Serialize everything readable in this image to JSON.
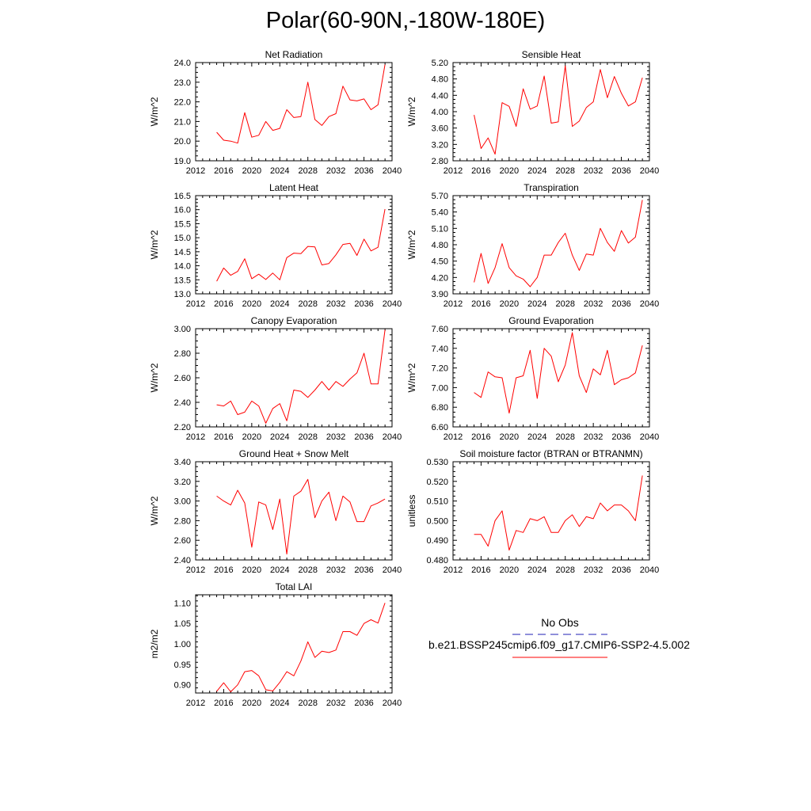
{
  "title": "Polar(60-90N,-180W-180E)",
  "colors": {
    "model_line": "#ff0000",
    "obs_line": "#1f1fb4",
    "frame": "#000000"
  },
  "legend": {
    "obs_label": "No Obs",
    "obs_style": "dashed",
    "case_label": "b.e21.BSSP245cmip6.f09_g17.CMIP6-SSP2-4.5.002",
    "case_style": "solid"
  },
  "chart_data": [
    {
      "type": "line",
      "title": "Net Radiation",
      "ylabel": "W/m^2",
      "xlim": [
        2012,
        2040
      ],
      "ylim": [
        19.0,
        24.0
      ],
      "xticks": [
        "2012",
        "2016",
        "2020",
        "2024",
        "2028",
        "2032",
        "2036",
        "2040"
      ],
      "yticks": [
        "19.0",
        "20.0",
        "21.0",
        "22.0",
        "23.0",
        "24.0"
      ],
      "x": [
        2015,
        2016,
        2017,
        2018,
        2019,
        2020,
        2021,
        2022,
        2023,
        2024,
        2025,
        2026,
        2027,
        2028,
        2029,
        2030,
        2031,
        2032,
        2033,
        2034,
        2035,
        2036,
        2037,
        2038,
        2039
      ],
      "series": [
        {
          "values": [
            20.45,
            20.05,
            20.0,
            19.9,
            21.45,
            20.2,
            20.3,
            21.0,
            20.55,
            20.65,
            21.6,
            21.2,
            21.25,
            23.0,
            21.1,
            20.8,
            21.25,
            21.4,
            22.8,
            22.1,
            22.05,
            22.15,
            21.6,
            21.85,
            23.9
          ]
        }
      ]
    },
    {
      "type": "line",
      "title": "Sensible Heat",
      "ylabel": "W/m^2",
      "xlim": [
        2012,
        2040
      ],
      "ylim": [
        2.8,
        5.2
      ],
      "xticks": [
        "2012",
        "2016",
        "2020",
        "2024",
        "2028",
        "2032",
        "2036",
        "2040"
      ],
      "yticks": [
        "2.80",
        "3.20",
        "3.60",
        "4.00",
        "4.40",
        "4.80",
        "5.20"
      ],
      "x": [
        2015,
        2016,
        2017,
        2018,
        2019,
        2020,
        2021,
        2022,
        2023,
        2024,
        2025,
        2026,
        2027,
        2028,
        2029,
        2030,
        2031,
        2032,
        2033,
        2034,
        2035,
        2036,
        2037,
        2038,
        2039
      ],
      "series": [
        {
          "values": [
            3.92,
            3.1,
            3.36,
            2.96,
            4.22,
            4.13,
            3.64,
            4.56,
            4.06,
            4.14,
            4.87,
            3.72,
            3.75,
            5.12,
            3.64,
            3.77,
            4.1,
            4.24,
            5.03,
            4.34,
            4.86,
            4.45,
            4.14,
            4.24,
            4.83
          ]
        }
      ]
    },
    {
      "type": "line",
      "title": "Latent Heat",
      "ylabel": "W/m^2",
      "xlim": [
        2012,
        2040
      ],
      "ylim": [
        13.0,
        16.5
      ],
      "xticks": [
        "2012",
        "2016",
        "2020",
        "2024",
        "2028",
        "2032",
        "2036",
        "2040"
      ],
      "yticks": [
        "13.0",
        "13.5",
        "14.0",
        "14.5",
        "15.0",
        "15.5",
        "16.0",
        "16.5"
      ],
      "x": [
        2015,
        2016,
        2017,
        2018,
        2019,
        2020,
        2021,
        2022,
        2023,
        2024,
        2025,
        2026,
        2027,
        2028,
        2029,
        2030,
        2031,
        2032,
        2033,
        2034,
        2035,
        2036,
        2037,
        2038,
        2039
      ],
      "series": [
        {
          "values": [
            13.45,
            13.92,
            13.66,
            13.8,
            14.25,
            13.54,
            13.7,
            13.51,
            13.74,
            13.5,
            14.29,
            14.45,
            14.43,
            14.69,
            14.67,
            14.03,
            14.08,
            14.39,
            14.76,
            14.8,
            14.37,
            14.95,
            14.53,
            14.66,
            16.02
          ]
        }
      ]
    },
    {
      "type": "line",
      "title": "Transpiration",
      "ylabel": "W/m^2",
      "xlim": [
        2012,
        2040
      ],
      "ylim": [
        3.9,
        5.7
      ],
      "xticks": [
        "2012",
        "2016",
        "2020",
        "2024",
        "2028",
        "2032",
        "2036",
        "2040"
      ],
      "yticks": [
        "3.90",
        "4.20",
        "4.50",
        "4.80",
        "5.10",
        "5.40",
        "5.70"
      ],
      "x": [
        2015,
        2016,
        2017,
        2018,
        2019,
        2020,
        2021,
        2022,
        2023,
        2024,
        2025,
        2026,
        2027,
        2028,
        2029,
        2030,
        2031,
        2032,
        2033,
        2034,
        2035,
        2036,
        2037,
        2038,
        2039
      ],
      "series": [
        {
          "values": [
            4.11,
            4.64,
            4.09,
            4.38,
            4.82,
            4.38,
            4.23,
            4.17,
            4.03,
            4.2,
            4.61,
            4.61,
            4.84,
            5.01,
            4.61,
            4.33,
            4.63,
            4.61,
            5.1,
            4.84,
            4.68,
            5.06,
            4.83,
            4.94,
            5.62
          ]
        }
      ]
    },
    {
      "type": "line",
      "title": "Canopy Evaporation",
      "ylabel": "W/m^2",
      "xlim": [
        2012,
        2040
      ],
      "ylim": [
        2.2,
        3.0
      ],
      "xticks": [
        "2012",
        "2016",
        "2020",
        "2024",
        "2028",
        "2032",
        "2036",
        "2040"
      ],
      "yticks": [
        "2.20",
        "2.40",
        "2.60",
        "2.80",
        "3.00"
      ],
      "x": [
        2015,
        2016,
        2017,
        2018,
        2019,
        2020,
        2021,
        2022,
        2023,
        2024,
        2025,
        2026,
        2027,
        2028,
        2029,
        2030,
        2031,
        2032,
        2033,
        2034,
        2035,
        2036,
        2037,
        2038,
        2039
      ],
      "series": [
        {
          "values": [
            2.38,
            2.37,
            2.41,
            2.3,
            2.32,
            2.41,
            2.37,
            2.23,
            2.35,
            2.39,
            2.25,
            2.5,
            2.49,
            2.44,
            2.5,
            2.57,
            2.5,
            2.57,
            2.53,
            2.59,
            2.64,
            2.8,
            2.55,
            2.55,
            2.99
          ]
        }
      ]
    },
    {
      "type": "line",
      "title": "Ground Evaporation",
      "ylabel": "W/m^2",
      "xlim": [
        2012,
        2040
      ],
      "ylim": [
        6.6,
        7.6
      ],
      "xticks": [
        "2012",
        "2016",
        "2020",
        "2024",
        "2028",
        "2032",
        "2036",
        "2040"
      ],
      "yticks": [
        "6.60",
        "6.80",
        "7.00",
        "7.20",
        "7.40",
        "7.60"
      ],
      "x": [
        2015,
        2016,
        2017,
        2018,
        2019,
        2020,
        2021,
        2022,
        2023,
        2024,
        2025,
        2026,
        2027,
        2028,
        2029,
        2030,
        2031,
        2032,
        2033,
        2034,
        2035,
        2036,
        2037,
        2038,
        2039
      ],
      "series": [
        {
          "values": [
            6.95,
            6.9,
            7.16,
            7.11,
            7.1,
            6.74,
            7.1,
            7.12,
            7.38,
            6.89,
            7.4,
            7.32,
            7.06,
            7.23,
            7.56,
            7.12,
            6.95,
            7.19,
            7.13,
            7.38,
            7.03,
            7.08,
            7.1,
            7.15,
            7.43
          ]
        }
      ]
    },
    {
      "type": "line",
      "title": "Ground Heat + Snow Melt",
      "ylabel": "W/m^2",
      "xlim": [
        2012,
        2040
      ],
      "ylim": [
        2.4,
        3.4
      ],
      "xticks": [
        "2012",
        "2016",
        "2020",
        "2024",
        "2028",
        "2032",
        "2036",
        "2040"
      ],
      "yticks": [
        "2.40",
        "2.60",
        "2.80",
        "3.00",
        "3.20",
        "3.40"
      ],
      "x": [
        2015,
        2016,
        2017,
        2018,
        2019,
        2020,
        2021,
        2022,
        2023,
        2024,
        2025,
        2026,
        2027,
        2028,
        2029,
        2030,
        2031,
        2032,
        2033,
        2034,
        2035,
        2036,
        2037,
        2038,
        2039
      ],
      "series": [
        {
          "values": [
            3.05,
            3.0,
            2.96,
            3.11,
            2.98,
            2.53,
            2.99,
            2.96,
            2.71,
            3.02,
            2.46,
            3.05,
            3.1,
            3.22,
            2.83,
            3.0,
            3.09,
            2.8,
            3.05,
            2.99,
            2.79,
            2.79,
            2.95,
            2.98,
            3.02
          ]
        }
      ]
    },
    {
      "type": "line",
      "title": "Soil moisture factor (BTRAN or BTRANMN)",
      "ylabel": "unitless",
      "xlim": [
        2012,
        2040
      ],
      "ylim": [
        0.48,
        0.53
      ],
      "xticks": [
        "2012",
        "2016",
        "2020",
        "2024",
        "2028",
        "2032",
        "2036",
        "2040"
      ],
      "yticks": [
        "0.480",
        "0.490",
        "0.500",
        "0.510",
        "0.520",
        "0.530"
      ],
      "x": [
        2015,
        2016,
        2017,
        2018,
        2019,
        2020,
        2021,
        2022,
        2023,
        2024,
        2025,
        2026,
        2027,
        2028,
        2029,
        2030,
        2031,
        2032,
        2033,
        2034,
        2035,
        2036,
        2037,
        2038,
        2039
      ],
      "series": [
        {
          "values": [
            0.493,
            0.493,
            0.487,
            0.5,
            0.505,
            0.485,
            0.495,
            0.494,
            0.501,
            0.5,
            0.502,
            0.494,
            0.494,
            0.5,
            0.503,
            0.497,
            0.502,
            0.501,
            0.509,
            0.505,
            0.508,
            0.508,
            0.505,
            0.5,
            0.523
          ]
        }
      ]
    },
    {
      "type": "line",
      "title": "Total LAI",
      "ylabel": "m2/m2",
      "xlim": [
        2012,
        2040
      ],
      "ylim": [
        0.88,
        1.12
      ],
      "xticks": [
        "2012",
        "2016",
        "2020",
        "2024",
        "2028",
        "2032",
        "2036",
        "2040"
      ],
      "yticks": [
        "0.90",
        "0.95",
        "1.00",
        "1.05",
        "1.10"
      ],
      "x": [
        2015,
        2016,
        2017,
        2018,
        2019,
        2020,
        2021,
        2022,
        2023,
        2024,
        2025,
        2026,
        2027,
        2028,
        2029,
        2030,
        2031,
        2032,
        2033,
        2034,
        2035,
        2036,
        2037,
        2038,
        2039
      ],
      "series": [
        {
          "values": [
            0.884,
            0.905,
            0.883,
            0.9,
            0.932,
            0.935,
            0.922,
            0.888,
            0.885,
            0.906,
            0.932,
            0.922,
            0.958,
            1.005,
            0.967,
            0.982,
            0.979,
            0.985,
            1.03,
            1.03,
            1.021,
            1.05,
            1.059,
            1.051,
            1.1
          ]
        }
      ]
    }
  ]
}
